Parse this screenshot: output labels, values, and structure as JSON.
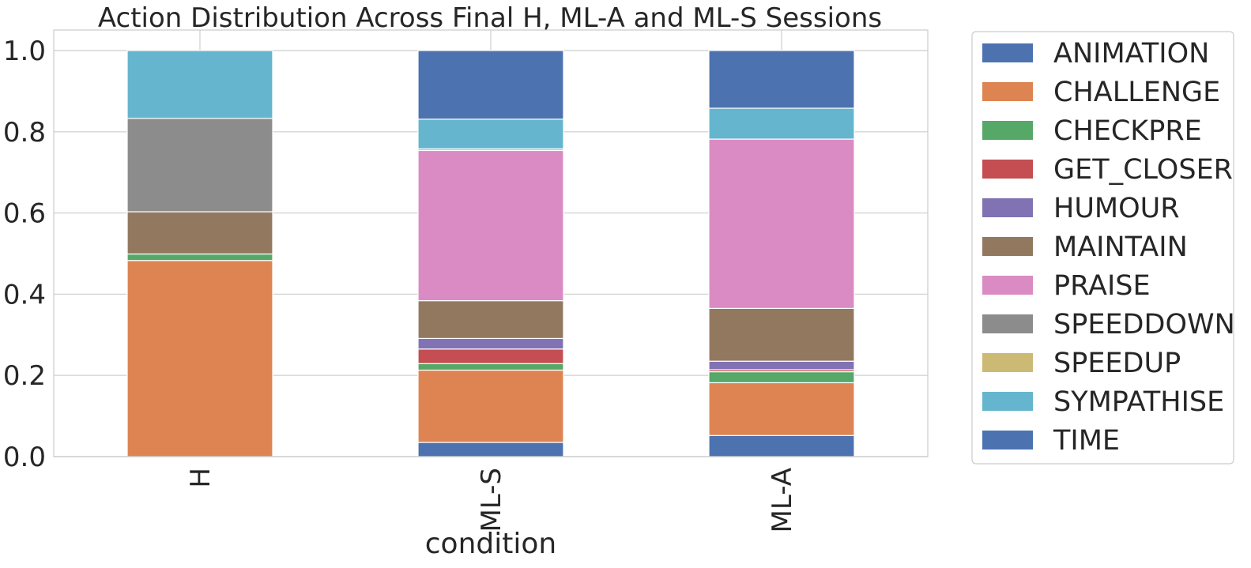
{
  "chart_data": {
    "type": "bar",
    "stacked": true,
    "title": "Action Distribution Across Final H, ML-A and ML-S Sessions",
    "xlabel": "condition",
    "ylabel": "",
    "ylim": [
      0,
      1.05
    ],
    "yticks": [
      "0.0",
      "0.2",
      "0.4",
      "0.6",
      "0.8",
      "1.0"
    ],
    "categories": [
      "H",
      "ML-S",
      "ML-A"
    ],
    "grid": true,
    "legend_position": "right, outside",
    "series": [
      {
        "name": "TIME",
        "color": "#4c72b0",
        "values": [
          0.0,
          0.035,
          0.052
        ]
      },
      {
        "name": "CHALLENGE",
        "color": "#dd8452",
        "values": [
          0.483,
          0.178,
          0.13
        ]
      },
      {
        "name": "CHECKPRE",
        "color": "#55a868",
        "values": [
          0.016,
          0.016,
          0.027
        ]
      },
      {
        "name": "GET_CLOSER",
        "color": "#c44e52",
        "values": [
          0.0,
          0.036,
          0.005
        ]
      },
      {
        "name": "HUMOUR",
        "color": "#8172b3",
        "values": [
          0.0,
          0.026,
          0.021
        ]
      },
      {
        "name": "MAINTAIN",
        "color": "#937860",
        "values": [
          0.104,
          0.093,
          0.13
        ]
      },
      {
        "name": "PRAISE",
        "color": "#da8bc3",
        "values": [
          0.0,
          0.37,
          0.417
        ]
      },
      {
        "name": "SPEEDDOWN",
        "color": "#8c8c8c",
        "values": [
          0.23,
          0.0,
          0.0
        ]
      },
      {
        "name": "SPEEDUP",
        "color": "#ccb974",
        "values": [
          0.0,
          0.004,
          0.0
        ]
      },
      {
        "name": "SYMPATHISE",
        "color": "#64b5cd",
        "values": [
          0.167,
          0.073,
          0.076
        ]
      },
      {
        "name": "ANIMATION",
        "color": "#4c72b0",
        "values": [
          0.0,
          0.169,
          0.142
        ]
      }
    ],
    "legend_order": [
      "ANIMATION",
      "CHALLENGE",
      "CHECKPRE",
      "GET_CLOSER",
      "HUMOUR",
      "MAINTAIN",
      "PRAISE",
      "SPEEDDOWN",
      "SPEEDUP",
      "SYMPATHISE",
      "TIME"
    ]
  }
}
